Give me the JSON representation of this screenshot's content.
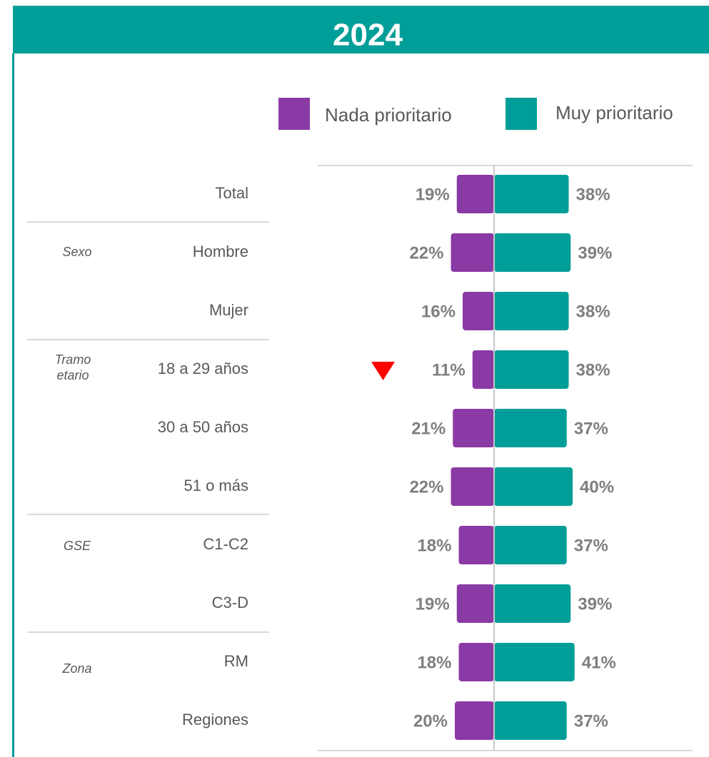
{
  "chart_data": {
    "type": "diverging-bar",
    "title": "2024",
    "categories": [
      "Total",
      "Hombre",
      "Mujer",
      "18 a 29 años",
      "30 a 50 años",
      "51 o más",
      "C1-C2",
      "C3-D",
      "RM",
      "Regiones"
    ],
    "groups": [
      "Sexo",
      "Tramo etario",
      "GSE",
      "Zona"
    ],
    "series": [
      {
        "name": "Nada prioritario",
        "color": "#8a3aa4",
        "values": [
          19,
          22,
          16,
          11,
          21,
          22,
          18,
          19,
          18,
          20
        ],
        "value_labels": [
          "19%",
          "22%",
          "16%",
          "11%",
          "21%",
          "22%",
          "18%",
          "19%",
          "18%",
          "20%"
        ]
      },
      {
        "name": "Muy prioritario",
        "color": "#009e98",
        "values": [
          38,
          39,
          38,
          38,
          37,
          40,
          37,
          39,
          41,
          37
        ],
        "value_labels": [
          "38%",
          "39%",
          "38%",
          "38%",
          "37%",
          "40%",
          "37%",
          "39%",
          "41%",
          "37%"
        ]
      }
    ]
  }
}
